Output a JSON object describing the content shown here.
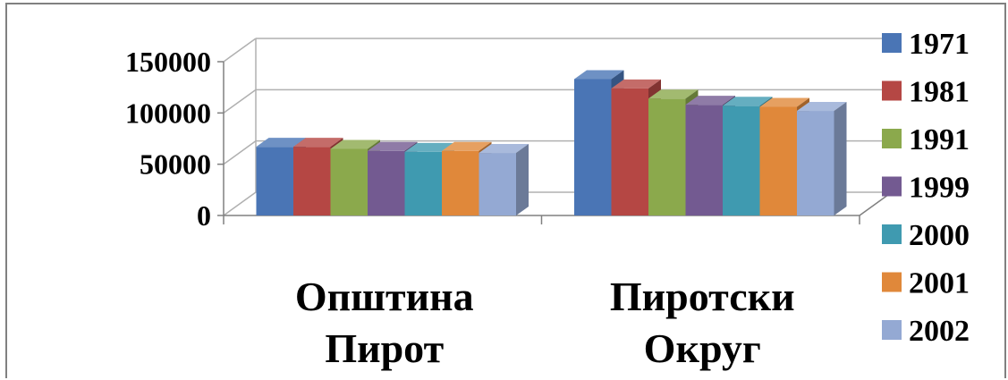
{
  "chart_data": {
    "type": "bar",
    "title": "",
    "xlabel": "",
    "ylabel": "",
    "ylim": [
      0,
      150000
    ],
    "yticks": [
      0,
      50000,
      100000,
      150000
    ],
    "ytick_labels": [
      "0",
      "50000",
      "100000",
      "150000"
    ],
    "grid": true,
    "three_d": true,
    "legend_position": "right",
    "categories": [
      [
        "Општина",
        "Пирот"
      ],
      [
        "Пиротски",
        "Округ"
      ]
    ],
    "series": [
      {
        "name": "1971",
        "color": "#4a75b5",
        "values": [
          67000,
          133000
        ]
      },
      {
        "name": "1981",
        "color": "#b54744",
        "values": [
          67000,
          124000
        ]
      },
      {
        "name": "1991",
        "color": "#8ba94c",
        "values": [
          65000,
          114000
        ]
      },
      {
        "name": "1999",
        "color": "#735a91",
        "values": [
          63000,
          108000
        ]
      },
      {
        "name": "2000",
        "color": "#3f9ab0",
        "values": [
          62000,
          107000
        ]
      },
      {
        "name": "2001",
        "color": "#e0883a",
        "values": [
          63000,
          106000
        ]
      },
      {
        "name": "2002",
        "color": "#94a9d3",
        "values": [
          61000,
          102000
        ]
      }
    ]
  }
}
